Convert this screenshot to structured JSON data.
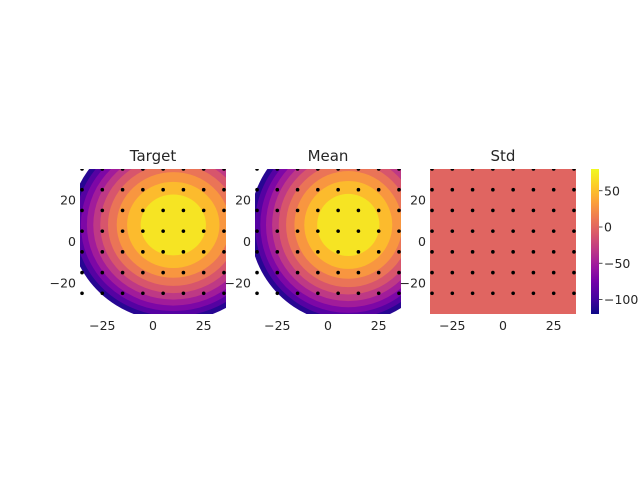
{
  "chart_data": [
    {
      "type": "heatmap",
      "title": "Target",
      "xlim": [
        -36,
        36
      ],
      "ylim": [
        -35,
        35
      ],
      "xticks": [
        -25,
        0,
        25
      ],
      "yticks": [
        -20,
        0,
        20
      ],
      "grid": false,
      "center": [
        10,
        8
      ],
      "levels": [
        -120,
        -100,
        -80,
        -60,
        -40,
        -20,
        0,
        20,
        40,
        60,
        80
      ],
      "sample_grid": {
        "x": [
          -35,
          -25,
          -15,
          -5,
          5,
          15,
          25,
          35
        ],
        "y": [
          -25,
          -15,
          -5,
          5,
          15,
          25,
          35
        ]
      }
    },
    {
      "type": "heatmap",
      "title": "Mean",
      "xlim": [
        -36,
        36
      ],
      "ylim": [
        -35,
        35
      ],
      "xticks": [
        -25,
        0,
        25
      ],
      "yticks": [
        -20,
        0,
        20
      ],
      "grid": false,
      "center": [
        10,
        8
      ],
      "levels": [
        -120,
        -100,
        -80,
        -60,
        -40,
        -20,
        0,
        20,
        40,
        60,
        80
      ],
      "sample_grid": {
        "x": [
          -35,
          -25,
          -15,
          -5,
          5,
          15,
          25,
          35
        ],
        "y": [
          -25,
          -15,
          -5,
          5,
          15,
          25,
          35
        ]
      }
    },
    {
      "type": "heatmap",
      "title": "Std",
      "xlim": [
        -36,
        36
      ],
      "ylim": [
        -35,
        35
      ],
      "xticks": [
        -25,
        0,
        25
      ],
      "yticks": [
        -20,
        0,
        20
      ],
      "grid": false,
      "constant_value": 0,
      "sample_grid": {
        "x": [
          -35,
          -25,
          -15,
          -5,
          5,
          15,
          25,
          35
        ],
        "y": [
          -25,
          -15,
          -5,
          5,
          15,
          25,
          35
        ]
      }
    }
  ],
  "colorbar": {
    "colormap": "plasma",
    "range": [
      -120,
      80
    ],
    "ticks": [
      50,
      0,
      -50,
      -100
    ],
    "tick_labels": [
      "50",
      "0",
      "−50",
      "−100"
    ]
  },
  "tick_text": {
    "x": [
      "−25",
      "0",
      "25"
    ],
    "y": [
      "−20",
      "0",
      "20"
    ]
  },
  "colors": {
    "marker": "#000000",
    "plasma_stops": [
      "#0d0887",
      "#46039f",
      "#7201a8",
      "#9c179e",
      "#bd3786",
      "#d8576b",
      "#ed7953",
      "#fb9f3a",
      "#fdca26",
      "#f0f921"
    ]
  }
}
